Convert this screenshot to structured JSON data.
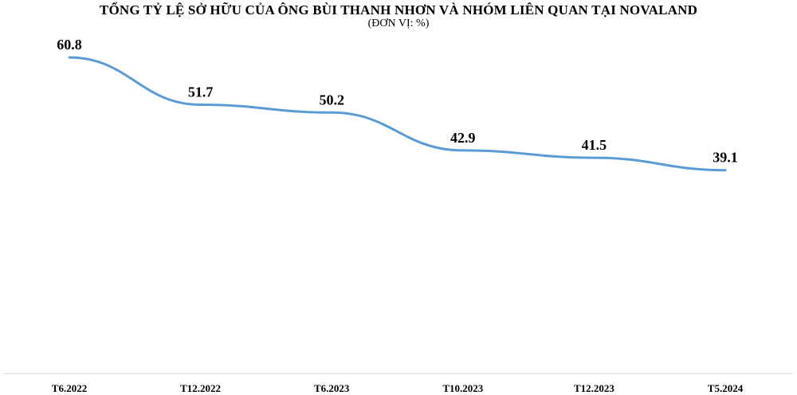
{
  "chart_data": {
    "type": "line",
    "title": "TỔNG TỶ LỆ SỞ HỮU CỦA ÔNG BÙI THANH NHƠN VÀ NHÓM LIÊN QUAN TẠI NOVALAND",
    "subtitle": "(ĐƠN VỊ: %)",
    "categories": [
      "T6.2022",
      "T12.2022",
      "T6.2023",
      "T10.2023",
      "T12.2023",
      "T5.2024"
    ],
    "series": [
      {
        "values": [
          60.8,
          51.7,
          50.2,
          42.9,
          41.5,
          39.1
        ]
      }
    ],
    "ylim": [
      0,
      70
    ],
    "grid": false,
    "smooth": true,
    "line_color": "#5b9bd5",
    "axis_color": "#d9d9d9"
  }
}
